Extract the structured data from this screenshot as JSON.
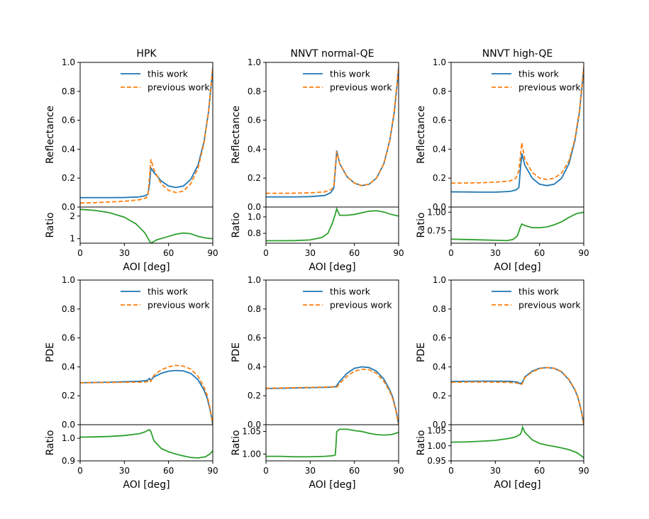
{
  "colors": {
    "this_work": "#1f77b4",
    "previous_work": "#ff7f0e",
    "ratio": "#2ca02c"
  },
  "legend": {
    "this_work": "this work",
    "previous_work": "previous work"
  },
  "xlabel": "AOI [deg]",
  "xticks": [
    0,
    30,
    60,
    90
  ],
  "chart_data": [
    {
      "type": "line",
      "title": "HPK",
      "ylabel": "Reflectance",
      "xlim": [
        0,
        90
      ],
      "ylim": [
        0,
        1
      ],
      "yticks": [
        0.0,
        0.2,
        0.4,
        0.6,
        0.8,
        1.0
      ],
      "series": [
        {
          "name": "this work",
          "x": [
            0,
            10,
            20,
            30,
            40,
            44,
            46,
            47,
            48,
            50,
            55,
            60,
            65,
            70,
            75,
            80,
            84,
            87,
            89,
            90
          ],
          "values": [
            0.065,
            0.065,
            0.065,
            0.066,
            0.07,
            0.078,
            0.09,
            0.15,
            0.27,
            0.24,
            0.18,
            0.145,
            0.135,
            0.145,
            0.19,
            0.29,
            0.45,
            0.65,
            0.85,
            0.96
          ]
        },
        {
          "name": "previous work",
          "x": [
            0,
            10,
            20,
            30,
            40,
            44,
            46,
            47,
            48,
            50,
            55,
            60,
            65,
            70,
            75,
            80,
            84,
            87,
            89,
            90
          ],
          "values": [
            0.028,
            0.03,
            0.035,
            0.04,
            0.05,
            0.06,
            0.075,
            0.2,
            0.33,
            0.26,
            0.16,
            0.115,
            0.1,
            0.11,
            0.16,
            0.27,
            0.44,
            0.65,
            0.86,
            0.97
          ]
        }
      ],
      "ratio": {
        "ylabel": "Ratio",
        "ylim": [
          0.8,
          2.4
        ],
        "yticks": [
          1,
          2
        ],
        "ytick_labels": [
          "1",
          "2"
        ],
        "x": [
          0,
          10,
          20,
          30,
          38,
          44,
          47,
          48,
          52,
          60,
          65,
          70,
          75,
          80,
          85,
          90
        ],
        "values": [
          2.3,
          2.25,
          2.15,
          1.95,
          1.65,
          1.25,
          0.9,
          0.8,
          0.95,
          1.1,
          1.2,
          1.25,
          1.22,
          1.1,
          1.03,
          1.0
        ]
      }
    },
    {
      "type": "line",
      "title": "NNVT normal-QE",
      "ylabel": "Reflectance",
      "xlim": [
        0,
        90
      ],
      "ylim": [
        0,
        1
      ],
      "yticks": [
        0.0,
        0.2,
        0.4,
        0.6,
        0.8,
        1.0
      ],
      "series": [
        {
          "name": "this work",
          "x": [
            0,
            10,
            20,
            30,
            40,
            44,
            46,
            47,
            48,
            50,
            55,
            60,
            65,
            70,
            75,
            80,
            84,
            87,
            89,
            90
          ],
          "values": [
            0.07,
            0.07,
            0.07,
            0.072,
            0.08,
            0.1,
            0.13,
            0.25,
            0.39,
            0.3,
            0.21,
            0.165,
            0.148,
            0.158,
            0.2,
            0.3,
            0.46,
            0.65,
            0.85,
            0.96
          ]
        },
        {
          "name": "previous work",
          "x": [
            0,
            10,
            20,
            30,
            40,
            44,
            46,
            47,
            48,
            50,
            55,
            60,
            65,
            70,
            75,
            80,
            84,
            87,
            89,
            90
          ],
          "values": [
            0.095,
            0.095,
            0.096,
            0.098,
            0.105,
            0.12,
            0.14,
            0.26,
            0.385,
            0.3,
            0.21,
            0.165,
            0.148,
            0.158,
            0.2,
            0.3,
            0.46,
            0.66,
            0.86,
            0.97
          ]
        }
      ],
      "ratio": {
        "ylabel": "Ratio",
        "ylim": [
          0.68,
          1.12
        ],
        "yticks": [
          0.8,
          1.0
        ],
        "ytick_labels": [
          "0.8",
          "1.0"
        ],
        "x": [
          0,
          10,
          20,
          30,
          38,
          42,
          45,
          47,
          48,
          50,
          55,
          60,
          65,
          70,
          75,
          80,
          85,
          90
        ],
        "values": [
          0.71,
          0.71,
          0.712,
          0.72,
          0.75,
          0.8,
          0.92,
          1.03,
          1.1,
          1.02,
          1.02,
          1.03,
          1.05,
          1.07,
          1.075,
          1.06,
          1.03,
          1.01
        ]
      }
    },
    {
      "type": "line",
      "title": "NNVT high-QE",
      "ylabel": "Reflectance",
      "xlim": [
        0,
        90
      ],
      "ylim": [
        0,
        1
      ],
      "yticks": [
        0.0,
        0.2,
        0.4,
        0.6,
        0.8,
        1.0
      ],
      "series": [
        {
          "name": "this work",
          "x": [
            0,
            10,
            20,
            30,
            40,
            44,
            46,
            47,
            48,
            50,
            55,
            60,
            65,
            70,
            75,
            80,
            84,
            87,
            89,
            90
          ],
          "values": [
            0.105,
            0.104,
            0.103,
            0.103,
            0.108,
            0.118,
            0.135,
            0.26,
            0.37,
            0.29,
            0.2,
            0.158,
            0.148,
            0.158,
            0.2,
            0.3,
            0.46,
            0.65,
            0.85,
            0.96
          ]
        },
        {
          "name": "previous work",
          "x": [
            0,
            10,
            20,
            30,
            40,
            44,
            46,
            47,
            48,
            50,
            55,
            60,
            65,
            70,
            75,
            80,
            84,
            87,
            89,
            90
          ],
          "values": [
            0.165,
            0.166,
            0.168,
            0.172,
            0.18,
            0.2,
            0.25,
            0.35,
            0.445,
            0.33,
            0.24,
            0.2,
            0.19,
            0.2,
            0.235,
            0.32,
            0.47,
            0.66,
            0.86,
            0.97
          ]
        }
      ],
      "ratio": {
        "ylabel": "Ratio",
        "ylim": [
          0.58,
          1.07
        ],
        "yticks": [
          0.75,
          1.0
        ],
        "ytick_labels": [
          "0.75",
          "1.00"
        ],
        "x": [
          0,
          10,
          20,
          30,
          38,
          42,
          45,
          47,
          48,
          50,
          55,
          60,
          65,
          70,
          75,
          80,
          85,
          90
        ],
        "values": [
          0.635,
          0.63,
          0.625,
          0.62,
          0.615,
          0.63,
          0.68,
          0.8,
          0.84,
          0.82,
          0.79,
          0.79,
          0.8,
          0.83,
          0.87,
          0.93,
          0.98,
          1.0
        ]
      }
    },
    {
      "type": "line",
      "title": "",
      "ylabel": "PDE",
      "xlim": [
        0,
        90
      ],
      "ylim": [
        0,
        1
      ],
      "yticks": [
        0.0,
        0.2,
        0.4,
        0.6,
        0.8,
        1.0
      ],
      "series": [
        {
          "name": "this work",
          "x": [
            0,
            10,
            20,
            30,
            40,
            45,
            46,
            47,
            48,
            50,
            55,
            60,
            65,
            70,
            75,
            80,
            84,
            86,
            88,
            89,
            90
          ],
          "values": [
            0.29,
            0.292,
            0.294,
            0.297,
            0.3,
            0.305,
            0.31,
            0.32,
            0.308,
            0.33,
            0.355,
            0.37,
            0.375,
            0.372,
            0.355,
            0.31,
            0.24,
            0.19,
            0.11,
            0.06,
            0.0
          ]
        },
        {
          "name": "previous work",
          "x": [
            0,
            10,
            20,
            30,
            40,
            45,
            46,
            47,
            48,
            50,
            55,
            60,
            65,
            70,
            75,
            80,
            84,
            86,
            88,
            89,
            90
          ],
          "values": [
            0.29,
            0.291,
            0.292,
            0.293,
            0.294,
            0.296,
            0.3,
            0.31,
            0.3,
            0.34,
            0.38,
            0.4,
            0.41,
            0.405,
            0.385,
            0.335,
            0.26,
            0.21,
            0.12,
            0.06,
            0.0
          ]
        }
      ],
      "ratio": {
        "ylabel": "Ratio",
        "ylim": [
          0.9,
          1.06
        ],
        "yticks": [
          0.9,
          1.0
        ],
        "ytick_labels": [
          "0.9",
          "1.0"
        ],
        "x": [
          0,
          10,
          20,
          30,
          40,
          44,
          46,
          47,
          48,
          50,
          55,
          60,
          65,
          70,
          75,
          80,
          85,
          88,
          90
        ],
        "values": [
          1.005,
          1.006,
          1.008,
          1.012,
          1.02,
          1.028,
          1.036,
          1.038,
          1.03,
          0.99,
          0.955,
          0.94,
          0.93,
          0.922,
          0.915,
          0.913,
          0.918,
          0.93,
          0.945
        ]
      }
    },
    {
      "type": "line",
      "title": "",
      "ylabel": "PDE",
      "xlim": [
        0,
        90
      ],
      "ylim": [
        0,
        1
      ],
      "yticks": [
        0.0,
        0.2,
        0.4,
        0.6,
        0.8,
        1.0
      ],
      "series": [
        {
          "name": "this work",
          "x": [
            0,
            10,
            20,
            30,
            40,
            45,
            47,
            48,
            50,
            55,
            60,
            65,
            70,
            75,
            80,
            84,
            86,
            88,
            89,
            90
          ],
          "values": [
            0.25,
            0.252,
            0.254,
            0.256,
            0.258,
            0.26,
            0.262,
            0.27,
            0.3,
            0.355,
            0.39,
            0.4,
            0.395,
            0.37,
            0.315,
            0.24,
            0.19,
            0.11,
            0.06,
            0.0
          ]
        },
        {
          "name": "previous work",
          "x": [
            0,
            10,
            20,
            30,
            40,
            45,
            47,
            48,
            50,
            55,
            60,
            65,
            70,
            75,
            80,
            84,
            86,
            88,
            89,
            90
          ],
          "values": [
            0.252,
            0.254,
            0.256,
            0.258,
            0.26,
            0.262,
            0.264,
            0.26,
            0.285,
            0.335,
            0.37,
            0.383,
            0.38,
            0.355,
            0.3,
            0.23,
            0.18,
            0.105,
            0.055,
            0.0
          ]
        }
      ],
      "ratio": {
        "ylabel": "Ratio",
        "ylim": [
          0.985,
          1.065
        ],
        "yticks": [
          1.0,
          1.05
        ],
        "ytick_labels": [
          "1.00",
          "1.05"
        ],
        "x": [
          0,
          10,
          20,
          30,
          40,
          44,
          46,
          47,
          47.5,
          48,
          50,
          55,
          60,
          65,
          70,
          75,
          80,
          85,
          88,
          90
        ],
        "values": [
          0.995,
          0.995,
          0.994,
          0.994,
          0.995,
          0.996,
          0.997,
          0.998,
          1.02,
          1.05,
          1.055,
          1.055,
          1.052,
          1.05,
          1.046,
          1.043,
          1.042,
          1.043,
          1.046,
          1.048
        ]
      }
    },
    {
      "type": "line",
      "title": "",
      "ylabel": "PDE",
      "xlim": [
        0,
        90
      ],
      "ylim": [
        0,
        1
      ],
      "yticks": [
        0.0,
        0.2,
        0.4,
        0.6,
        0.8,
        1.0
      ],
      "series": [
        {
          "name": "this work",
          "x": [
            0,
            10,
            20,
            30,
            40,
            45,
            46,
            47,
            48,
            49,
            50,
            55,
            60,
            65,
            70,
            75,
            80,
            84,
            86,
            88,
            89,
            90
          ],
          "values": [
            0.298,
            0.3,
            0.301,
            0.301,
            0.3,
            0.295,
            0.288,
            0.285,
            0.29,
            0.305,
            0.33,
            0.37,
            0.39,
            0.395,
            0.39,
            0.365,
            0.31,
            0.24,
            0.19,
            0.11,
            0.06,
            0.0
          ]
        },
        {
          "name": "previous work",
          "x": [
            0,
            10,
            20,
            30,
            40,
            45,
            46,
            47,
            48,
            49,
            50,
            55,
            60,
            65,
            70,
            75,
            80,
            84,
            86,
            88,
            89,
            90
          ],
          "values": [
            0.293,
            0.295,
            0.295,
            0.294,
            0.292,
            0.288,
            0.28,
            0.275,
            0.28,
            0.3,
            0.325,
            0.365,
            0.388,
            0.395,
            0.39,
            0.367,
            0.313,
            0.243,
            0.193,
            0.113,
            0.062,
            0.0
          ]
        }
      ],
      "ratio": {
        "ylabel": "Ratio",
        "ylim": [
          0.95,
          1.07
        ],
        "yticks": [
          0.95,
          1.0,
          1.05
        ],
        "ytick_labels": [
          "0.95",
          "1.00",
          "1.05"
        ],
        "x": [
          0,
          10,
          20,
          30,
          40,
          44,
          46,
          47,
          48,
          48.5,
          50,
          55,
          60,
          65,
          70,
          75,
          80,
          85,
          88,
          90
        ],
        "values": [
          1.012,
          1.013,
          1.015,
          1.018,
          1.025,
          1.03,
          1.036,
          1.038,
          1.05,
          1.062,
          1.045,
          1.02,
          1.008,
          1.002,
          0.998,
          0.993,
          0.987,
          0.978,
          0.968,
          0.96
        ]
      }
    }
  ]
}
